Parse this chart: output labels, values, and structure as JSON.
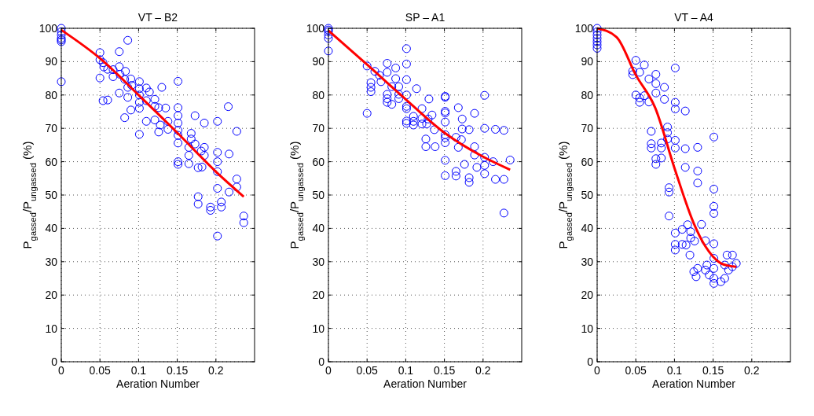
{
  "chart_data": [
    {
      "type": "scatter",
      "title": "VT – B2",
      "xlabel": "Aeration Number",
      "ylabel": "P$_{gassed}$/P$_{ungassed}$ (%)",
      "xlim": [
        0,
        0.25
      ],
      "xticks": [
        0,
        0.05,
        0.1,
        0.15,
        0.2
      ],
      "ylim": [
        0,
        100
      ],
      "yticks": [
        0,
        10,
        20,
        30,
        40,
        50,
        60,
        70,
        80,
        90,
        100
      ],
      "grid": true,
      "series": [
        {
          "marker": "circle",
          "color": "#0000ff",
          "x": [
            0,
            0,
            0,
            0,
            0,
            0,
            0,
            0.086,
            0.05,
            0.075,
            0.05,
            0.054,
            0.055,
            0.06,
            0.067,
            0.075,
            0.076,
            0.083,
            0.067,
            0.05,
            0.082,
            0.09,
            0.101,
            0.086,
            0.091,
            0.101,
            0.11,
            0.114,
            0.13,
            0.151,
            0.075,
            0.054,
            0.06,
            0.086,
            0.101,
            0.101,
            0.11,
            0.121,
            0.09,
            0.101,
            0.121,
            0.126,
            0.135,
            0.082,
            0.11,
            0.121,
            0.128,
            0.138,
            0.138,
            0.126,
            0.101,
            0.151,
            0.151,
            0.151,
            0.151,
            0.151,
            0.151,
            0.173,
            0.168,
            0.168,
            0.173,
            0.165,
            0.185,
            0.202,
            0.216,
            0.227,
            0.181,
            0.185,
            0.185,
            0.202,
            0.202,
            0.217,
            0.165,
            0.165,
            0.151,
            0.151,
            0.177,
            0.182,
            0.202,
            0.227,
            0.227,
            0.202,
            0.217,
            0.177,
            0.177,
            0.193,
            0.193,
            0.207,
            0.207,
            0.236,
            0.236,
            0.202
          ],
          "values": [
            100,
            99,
            98,
            97,
            96.5,
            96,
            84,
            96.4,
            92.7,
            93,
            90.6,
            89.7,
            88.4,
            87.7,
            87.6,
            88.5,
            86.2,
            87.1,
            85.5,
            85.1,
            84.7,
            84.8,
            84,
            82.3,
            82.9,
            81.9,
            82.1,
            80.9,
            82.3,
            84.1,
            80.6,
            78.3,
            78.5,
            79.3,
            80,
            77.8,
            78.3,
            78.7,
            75.5,
            76,
            76.6,
            76.2,
            76.1,
            73.2,
            72.1,
            72.5,
            71,
            72.1,
            69.7,
            68.9,
            68.2,
            76.2,
            73.8,
            71.6,
            69.4,
            67.9,
            65.6,
            73.8,
            68.5,
            66.8,
            65.3,
            64.3,
            71.6,
            72.1,
            76.5,
            69.1,
            63.2,
            64.3,
            61.9,
            62.8,
            60,
            62.3,
            61.9,
            59.4,
            60,
            59.2,
            58.2,
            58.4,
            57,
            54.8,
            52.4,
            52,
            50.9,
            49.5,
            47.3,
            46.4,
            45.4,
            47.9,
            46.4,
            43.7,
            41.7,
            37.7
          ]
        },
        {
          "type": "line",
          "color": "#ff0000",
          "x": [
            0,
            0.05,
            0.1,
            0.15,
            0.2,
            0.236
          ],
          "values": [
            99.5,
            91,
            80,
            68.7,
            57,
            49.5
          ]
        }
      ]
    },
    {
      "type": "scatter",
      "title": "SP – A1",
      "xlabel": "Aeration Number",
      "ylabel": "P$_{gassed}$/P$_{ungassed}$ (%)",
      "xlim": [
        0,
        0.25
      ],
      "xticks": [
        0,
        0.05,
        0.1,
        0.15,
        0.2
      ],
      "ylim": [
        0,
        100
      ],
      "yticks": [
        0,
        10,
        20,
        30,
        40,
        50,
        60,
        70,
        80,
        90,
        100
      ],
      "grid": true,
      "series": [
        {
          "marker": "circle",
          "color": "#0000ff",
          "x": [
            0,
            0,
            0,
            0,
            0,
            0,
            0.101,
            0.05,
            0.076,
            0.087,
            0.101,
            0.06,
            0.066,
            0.076,
            0.068,
            0.055,
            0.055,
            0.055,
            0.087,
            0.082,
            0.091,
            0.101,
            0.114,
            0.076,
            0.091,
            0.101,
            0.076,
            0.076,
            0.082,
            0.091,
            0.13,
            0.05,
            0.101,
            0.101,
            0.121,
            0.11,
            0.101,
            0.101,
            0.11,
            0.11,
            0.121,
            0.121,
            0.129,
            0.134,
            0.127,
            0.137,
            0.126,
            0.126,
            0.138,
            0.151,
            0.151,
            0.151,
            0.151,
            0.151,
            0.151,
            0.151,
            0.151,
            0.151,
            0.151,
            0.168,
            0.173,
            0.173,
            0.182,
            0.189,
            0.165,
            0.172,
            0.168,
            0.189,
            0.189,
            0.176,
            0.192,
            0.165,
            0.165,
            0.182,
            0.182,
            0.202,
            0.202,
            0.216,
            0.227,
            0.202,
            0.202,
            0.202,
            0.213,
            0.216,
            0.227,
            0.235,
            0.227
          ],
          "values": [
            100,
            99.5,
            99,
            98,
            97,
            93.2,
            93.9,
            88.7,
            89.5,
            88.1,
            89.3,
            87.1,
            85.9,
            86.8,
            84,
            83.7,
            82.3,
            81,
            84.9,
            82.5,
            82.5,
            84.6,
            81.9,
            80.2,
            80.2,
            80,
            78.9,
            77.8,
            77.2,
            78.9,
            78.8,
            74.5,
            76.6,
            75.9,
            75.9,
            73.6,
            72.2,
            71.5,
            72.1,
            71,
            73,
            71.3,
            72.8,
            74,
            71.3,
            69.6,
            66.8,
            64.5,
            64.5,
            79.6,
            79.3,
            75.1,
            74.6,
            71.9,
            68.1,
            67.2,
            65.7,
            60.4,
            55.8,
            76.2,
            72.8,
            69.8,
            69.6,
            74.5,
            67.3,
            66.6,
            64.3,
            64.5,
            62,
            59.2,
            58.3,
            57.1,
            55.7,
            55.2,
            53.8,
            79.9,
            70,
            69.7,
            69.4,
            61.3,
            58.9,
            56.4,
            60,
            54.7,
            54.7,
            60.5,
            44.6
          ]
        },
        {
          "type": "line",
          "color": "#ff0000",
          "x": [
            0,
            0.05,
            0.1,
            0.15,
            0.2,
            0.235
          ],
          "values": [
            99.3,
            89.1,
            78.7,
            68.7,
            61.5,
            57.6
          ]
        }
      ]
    },
    {
      "type": "scatter",
      "title": "VT – A4",
      "xlabel": "Aeration Number",
      "ylabel": "P$_{gassed}$/P$_{ungassed}$ (%)",
      "xlim": [
        0,
        0.25
      ],
      "xticks": [
        0,
        0.05,
        0.1,
        0.15,
        0.2
      ],
      "ylim": [
        0,
        100
      ],
      "yticks": [
        0,
        10,
        20,
        30,
        40,
        50,
        60,
        70,
        80,
        90,
        100
      ],
      "grid": true,
      "series": [
        {
          "marker": "circle",
          "color": "#0000ff",
          "x": [
            0,
            0,
            0,
            0,
            0,
            0,
            0,
            0.05,
            0.061,
            0.046,
            0.046,
            0.055,
            0.101,
            0.076,
            0.067,
            0.076,
            0.087,
            0.076,
            0.05,
            0.055,
            0.061,
            0.055,
            0.067,
            0.087,
            0.101,
            0.101,
            0.114,
            0.091,
            0.091,
            0.091,
            0.07,
            0.07,
            0.07,
            0.083,
            0.083,
            0.101,
            0.101,
            0.114,
            0.13,
            0.151,
            0.076,
            0.076,
            0.083,
            0.114,
            0.13,
            0.13,
            0.093,
            0.093,
            0.151,
            0.151,
            0.151,
            0.093,
            0.135,
            0.117,
            0.11,
            0.121,
            0.101,
            0.121,
            0.126,
            0.101,
            0.11,
            0.14,
            0.151,
            0.101,
            0.115,
            0.12,
            0.125,
            0.128,
            0.13,
            0.14,
            0.142,
            0.145,
            0.151,
            0.151,
            0.151,
            0.151,
            0.16,
            0.165,
            0.165,
            0.168,
            0.17,
            0.175,
            0.175,
            0.18
          ],
          "values": [
            100,
            99,
            98,
            97,
            96,
            95,
            94,
            90.4,
            89,
            87.2,
            86.1,
            86.8,
            88.1,
            86.2,
            84.8,
            83.4,
            82.3,
            80.6,
            80,
            79.1,
            79.8,
            77.8,
            77.9,
            78.7,
            77.8,
            75.8,
            75.2,
            70.4,
            68.7,
            66.8,
            69.1,
            65.4,
            64.1,
            65.6,
            64.1,
            66.4,
            64.1,
            63.9,
            64.3,
            67.4,
            60.9,
            59.2,
            61.1,
            58.3,
            57.2,
            53.6,
            52.2,
            50.9,
            51.8,
            46.6,
            44.5,
            43.7,
            41.2,
            41.1,
            39.7,
            39,
            38.6,
            37.1,
            36.2,
            35.2,
            35.2,
            36.3,
            35.4,
            33.5,
            35,
            32,
            27,
            25.5,
            28,
            27.5,
            29,
            26,
            31,
            28,
            25,
            23.5,
            24,
            25,
            29,
            32,
            27.5,
            32,
            28.5,
            29.5
          ]
        },
        {
          "type": "line",
          "color": "#ff0000",
          "x": [
            0,
            0.025,
            0.05,
            0.075,
            0.1,
            0.125,
            0.14,
            0.15,
            0.16,
            0.17,
            0.18
          ],
          "values": [
            100,
            97.4,
            86,
            76.2,
            58.1,
            41.5,
            34.6,
            31.5,
            29.5,
            28.8,
            28.5
          ]
        }
      ]
    }
  ]
}
